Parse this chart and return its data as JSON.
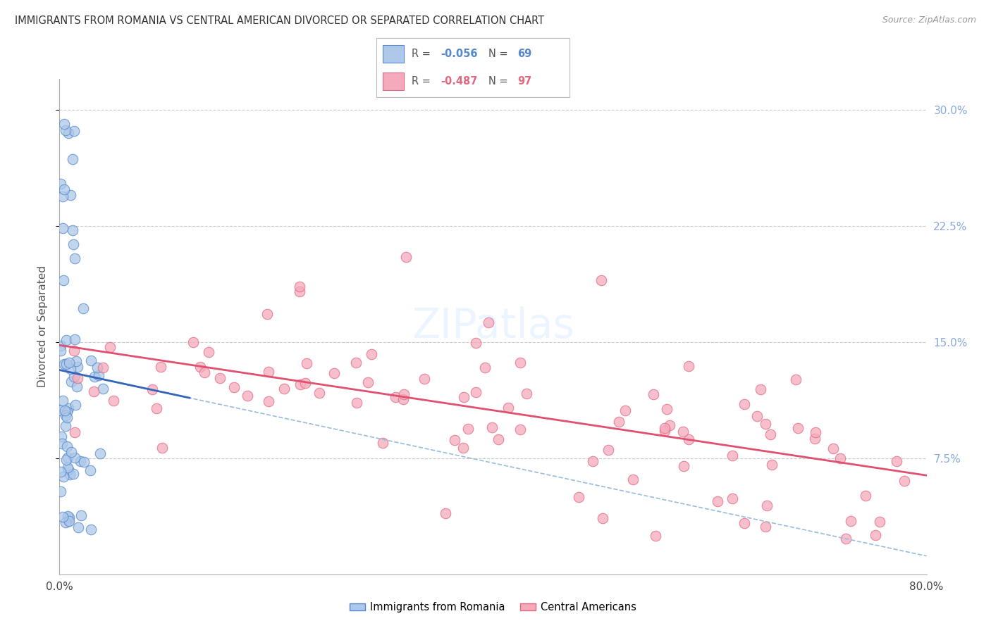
{
  "title": "IMMIGRANTS FROM ROMANIA VS CENTRAL AMERICAN DIVORCED OR SEPARATED CORRELATION CHART",
  "source": "Source: ZipAtlas.com",
  "ylabel": "Divorced or Separated",
  "ytick_labels": [
    "7.5%",
    "15.0%",
    "22.5%",
    "30.0%"
  ],
  "ytick_values": [
    0.075,
    0.15,
    0.225,
    0.3
  ],
  "xlim": [
    0.0,
    0.8
  ],
  "ylim": [
    0.0,
    0.32
  ],
  "romania_color": "#adc8e8",
  "romania_edge_color": "#5588cc",
  "central_color": "#f5aabc",
  "central_edge_color": "#e06880",
  "romania_line_color": "#3366bb",
  "central_line_color": "#e05070",
  "conf_line_color": "#99bbdd",
  "legend_romania_R": "-0.056",
  "legend_romania_N": "69",
  "legend_central_R": "-0.487",
  "legend_central_N": "97",
  "legend_romania_label": "Immigrants from Romania",
  "legend_central_label": "Central Americans",
  "watermark": "ZIPatlas",
  "background_color": "#ffffff",
  "grid_color": "#cccccc",
  "right_axis_color": "#88aadd"
}
